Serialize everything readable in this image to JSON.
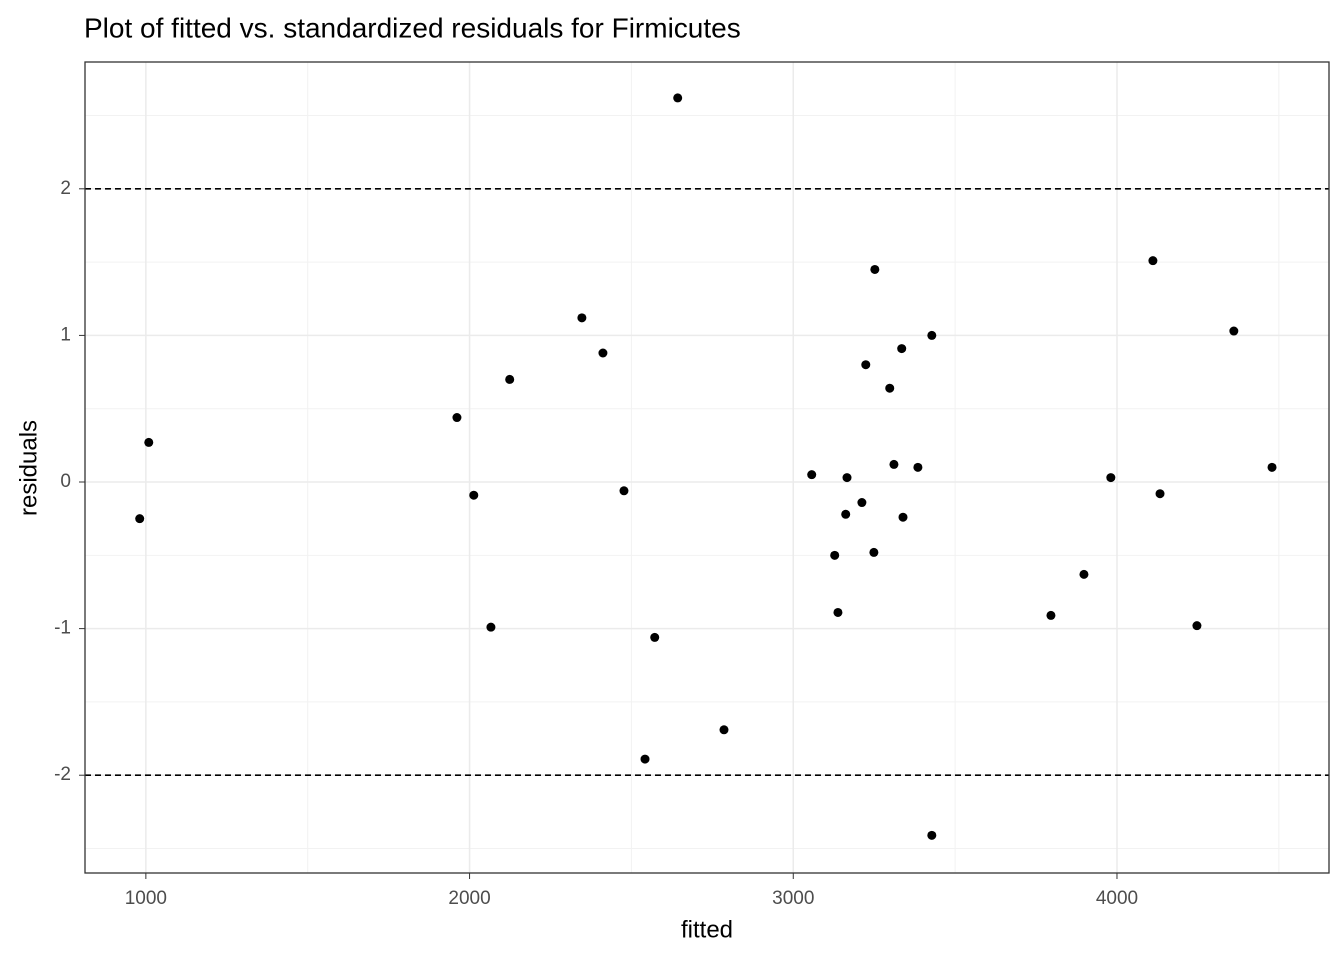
{
  "chart_data": {
    "type": "scatter",
    "title": "Plot of fitted vs. standardized residuals for Firmicutes",
    "x_label": "fitted",
    "y_label": "residuals",
    "x": [
      981,
      1009,
      1961,
      2013,
      2066,
      2124,
      2347,
      2412,
      2477,
      2542,
      2572,
      2643,
      2786,
      3057,
      3128,
      3138,
      3162,
      3166,
      3212,
      3224,
      3249,
      3252,
      3298,
      3311,
      3335,
      3339,
      3385,
      3428,
      3428,
      3796,
      3898,
      3981,
      4111,
      4133,
      4247,
      4361,
      4479
    ],
    "values": [
      -0.25,
      0.27,
      0.44,
      -0.09,
      -0.99,
      0.7,
      1.12,
      0.88,
      -0.06,
      -1.89,
      -1.06,
      2.62,
      -1.69,
      0.05,
      -0.5,
      -0.89,
      -0.22,
      0.03,
      -0.14,
      0.8,
      -0.48,
      1.45,
      0.64,
      0.12,
      0.91,
      -0.24,
      0.1,
      1.0,
      -2.41,
      -0.91,
      -0.63,
      0.03,
      1.51,
      -0.08,
      -0.98,
      1.03,
      0.1
    ],
    "color": "#000000",
    "xlim": [
      812,
      4655
    ],
    "ylim": [
      -2.667,
      2.865
    ],
    "xticks": [
      1000,
      2000,
      3000,
      4000
    ],
    "yticks": [
      -2,
      -1,
      0,
      1,
      2
    ],
    "xminor": [
      1500,
      2500,
      3500,
      4500
    ],
    "yminor": [
      -2.5,
      -1.5,
      -0.5,
      0.5,
      1.5,
      2.5
    ],
    "hlines": [
      2,
      -2
    ],
    "grid": true
  }
}
